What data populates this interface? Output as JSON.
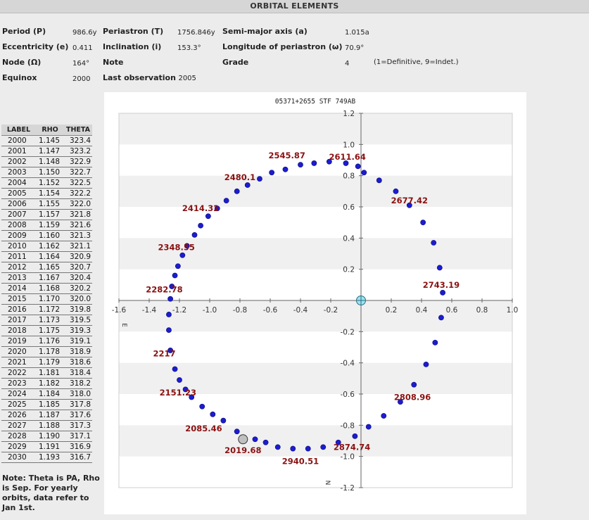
{
  "header": {
    "title": "ORBITAL ELEMENTS"
  },
  "elements": {
    "period": {
      "label": "Period (P)",
      "value": "986.6y"
    },
    "periastron": {
      "label": "Periastron (T)",
      "value": "1756.846y"
    },
    "semimajor": {
      "label": "Semi-major axis (a)",
      "value": "1.015a"
    },
    "eccentricity": {
      "label": "Eccentricity (e)",
      "value": "0.411"
    },
    "inclination": {
      "label": "Inclination (i)",
      "value": "153.3°"
    },
    "longitude": {
      "label": "Longitude of periastron (ω)",
      "value": "70.9°"
    },
    "node": {
      "label": "Node (Ω)",
      "value": "164°"
    },
    "note": {
      "label": "Note",
      "value": ""
    },
    "grade": {
      "label": "Grade",
      "value": "4",
      "note": "(1=Definitive, 9=Indet.)"
    },
    "equinox": {
      "label": "Equinox",
      "value": "2000"
    },
    "last_obs": {
      "label": "Last observation",
      "value": "2005"
    }
  },
  "table": {
    "headers": [
      "LABEL",
      "RHO",
      "THETA"
    ],
    "rows": [
      [
        "2000",
        "1.145",
        "323.4"
      ],
      [
        "2001",
        "1.147",
        "323.2"
      ],
      [
        "2002",
        "1.148",
        "322.9"
      ],
      [
        "2003",
        "1.150",
        "322.7"
      ],
      [
        "2004",
        "1.152",
        "322.5"
      ],
      [
        "2005",
        "1.154",
        "322.2"
      ],
      [
        "2006",
        "1.155",
        "322.0"
      ],
      [
        "2007",
        "1.157",
        "321.8"
      ],
      [
        "2008",
        "1.159",
        "321.6"
      ],
      [
        "2009",
        "1.160",
        "321.3"
      ],
      [
        "2010",
        "1.162",
        "321.1"
      ],
      [
        "2011",
        "1.164",
        "320.9"
      ],
      [
        "2012",
        "1.165",
        "320.7"
      ],
      [
        "2013",
        "1.167",
        "320.4"
      ],
      [
        "2014",
        "1.168",
        "320.2"
      ],
      [
        "2015",
        "1.170",
        "320.0"
      ],
      [
        "2016",
        "1.172",
        "319.8"
      ],
      [
        "2017",
        "1.173",
        "319.5"
      ],
      [
        "2018",
        "1.175",
        "319.3"
      ],
      [
        "2019",
        "1.176",
        "319.1"
      ],
      [
        "2020",
        "1.178",
        "318.9"
      ],
      [
        "2021",
        "1.179",
        "318.6"
      ],
      [
        "2022",
        "1.181",
        "318.4"
      ],
      [
        "2023",
        "1.182",
        "318.2"
      ],
      [
        "2024",
        "1.184",
        "318.0"
      ],
      [
        "2025",
        "1.185",
        "317.8"
      ],
      [
        "2026",
        "1.187",
        "317.6"
      ],
      [
        "2027",
        "1.188",
        "317.3"
      ],
      [
        "2028",
        "1.190",
        "317.1"
      ],
      [
        "2029",
        "1.191",
        "316.9"
      ],
      [
        "2030",
        "1.193",
        "316.7"
      ]
    ]
  },
  "footnote": "Note: Theta is PA, Rho is Sep. For yearly orbits, data refer to Jan 1st.",
  "chart_data": {
    "type": "scatter",
    "title": "05371+2655 STF 749AB",
    "xlim": [
      -1.6,
      1.0
    ],
    "ylim": [
      -1.2,
      1.2
    ],
    "x_ticks": [
      "-1.6",
      "-1.4",
      "-1.2",
      "-1.0",
      "-0.8",
      "-0.6",
      "-0.4",
      "-0.2",
      "0.2",
      "0.4",
      "0.6",
      "0.8",
      "1.0"
    ],
    "x_tick_values": [
      -1.6,
      -1.4,
      -1.2,
      -1.0,
      -0.8,
      -0.6,
      -0.4,
      -0.2,
      0.2,
      0.4,
      0.6,
      0.8,
      1.0
    ],
    "y_ticks": [
      "1.2",
      "1.0",
      "0.8",
      "0.6",
      "0.4",
      "0.2",
      "-0.2",
      "-0.4",
      "-0.6",
      "-0.8",
      "-1.0",
      "-1.2"
    ],
    "y_tick_values": [
      1.2,
      1.0,
      0.8,
      0.6,
      0.4,
      0.2,
      -0.2,
      -0.4,
      -0.6,
      -0.8,
      -1.0,
      -1.2
    ],
    "x_dir_label": "E",
    "y_dir_label": "N",
    "grid": "horizontal bands",
    "primary": {
      "x": 0.0,
      "y": 0.0
    },
    "current_position": {
      "x": -0.78,
      "y": -0.89
    },
    "orbit_points": [
      [
        0.02,
        0.82
      ],
      [
        0.12,
        0.77
      ],
      [
        0.23,
        0.7
      ],
      [
        0.32,
        0.61
      ],
      [
        0.41,
        0.5
      ],
      [
        0.48,
        0.37
      ],
      [
        0.52,
        0.21
      ],
      [
        0.54,
        0.05
      ],
      [
        0.53,
        -0.11
      ],
      [
        0.49,
        -0.27
      ],
      [
        0.43,
        -0.41
      ],
      [
        0.35,
        -0.54
      ],
      [
        0.26,
        -0.65
      ],
      [
        0.15,
        -0.74
      ],
      [
        0.05,
        -0.81
      ],
      [
        -0.04,
        -0.87
      ],
      [
        -0.15,
        -0.91
      ],
      [
        -0.25,
        -0.94
      ],
      [
        -0.35,
        -0.95
      ],
      [
        -0.45,
        -0.95
      ],
      [
        -0.55,
        -0.94
      ],
      [
        -0.63,
        -0.91
      ],
      [
        -0.7,
        -0.89
      ],
      [
        -0.82,
        -0.84
      ],
      [
        -0.91,
        -0.77
      ],
      [
        -0.98,
        -0.73
      ],
      [
        -1.05,
        -0.68
      ],
      [
        -1.12,
        -0.62
      ],
      [
        -1.16,
        -0.57
      ],
      [
        -1.2,
        -0.51
      ],
      [
        -1.23,
        -0.44
      ],
      [
        -1.26,
        -0.32
      ],
      [
        -1.27,
        -0.19
      ],
      [
        -1.27,
        -0.09
      ],
      [
        -1.26,
        0.01
      ],
      [
        -1.25,
        0.09
      ],
      [
        -1.23,
        0.16
      ],
      [
        -1.21,
        0.22
      ],
      [
        -1.18,
        0.29
      ],
      [
        -1.15,
        0.35
      ],
      [
        -1.1,
        0.42
      ],
      [
        -1.06,
        0.48
      ],
      [
        -1.01,
        0.54
      ],
      [
        -0.95,
        0.59
      ],
      [
        -0.89,
        0.64
      ],
      [
        -0.82,
        0.7
      ],
      [
        -0.75,
        0.74
      ],
      [
        -0.67,
        0.78
      ],
      [
        -0.59,
        0.82
      ],
      [
        -0.5,
        0.84
      ],
      [
        -0.4,
        0.87
      ],
      [
        -0.31,
        0.88
      ],
      [
        -0.21,
        0.89
      ],
      [
        -0.1,
        0.88
      ],
      [
        -0.02,
        0.86
      ]
    ],
    "annotations": [
      {
        "text": "2545.87",
        "x": -0.49,
        "y": 0.93
      },
      {
        "text": "2611.64",
        "x": -0.09,
        "y": 0.92
      },
      {
        "text": "2480.1",
        "x": -0.8,
        "y": 0.79
      },
      {
        "text": "2677.42",
        "x": 0.32,
        "y": 0.64
      },
      {
        "text": "2414.32",
        "x": -1.06,
        "y": 0.59
      },
      {
        "text": "2348.55",
        "x": -1.22,
        "y": 0.34
      },
      {
        "text": "2743.19",
        "x": 0.53,
        "y": 0.1
      },
      {
        "text": "2282.78",
        "x": -1.3,
        "y": 0.07
      },
      {
        "text": "2217",
        "x": -1.3,
        "y": -0.34
      },
      {
        "text": "2151.23",
        "x": -1.21,
        "y": -0.59
      },
      {
        "text": "2808.96",
        "x": 0.34,
        "y": -0.62
      },
      {
        "text": "2085.46",
        "x": -1.04,
        "y": -0.82
      },
      {
        "text": "2019.68",
        "x": -0.78,
        "y": -0.96
      },
      {
        "text": "2874.74",
        "x": -0.06,
        "y": -0.94
      },
      {
        "text": "2940.51",
        "x": -0.4,
        "y": -1.03
      }
    ]
  }
}
